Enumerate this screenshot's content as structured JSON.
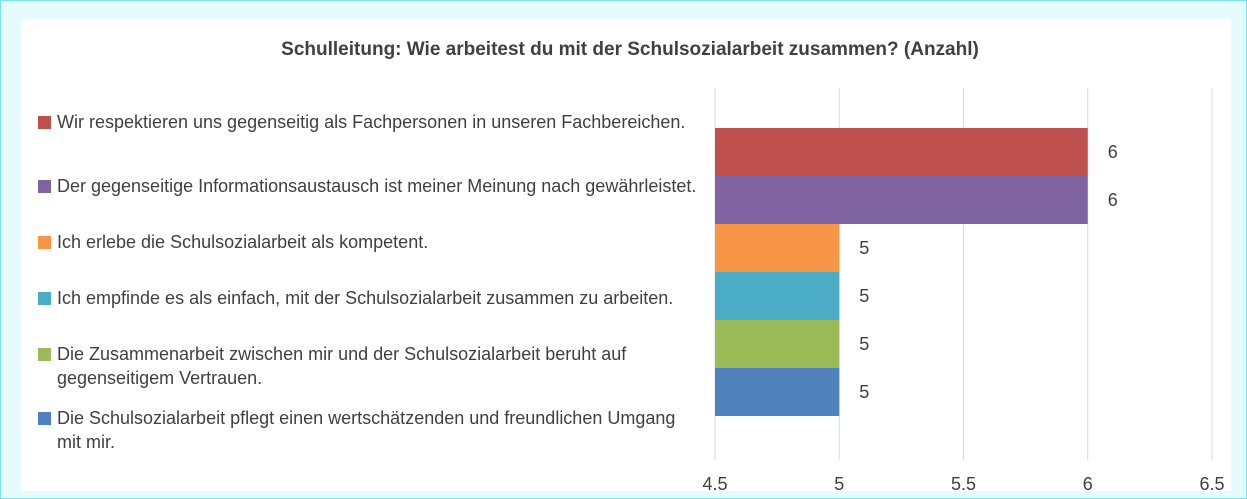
{
  "chart_data": {
    "type": "bar",
    "orientation": "horizontal",
    "title": "Schulleitung: Wie arbeitest du mit der Schulsozialarbeit zusammen? (Anzahl)",
    "categories": [
      null
    ],
    "series": [
      {
        "name": "Wir respektieren uns gegenseitig als Fachpersonen in unseren Fachbereichen.",
        "color": "#c0504d",
        "values": [
          6
        ]
      },
      {
        "name": "Der gegenseitige Informationsaustausch ist meiner Meinung nach gewährleistet.",
        "color": "#8064a2",
        "values": [
          6
        ]
      },
      {
        "name": "Ich erlebe die Schulsozialarbeit als kompetent.",
        "color": "#f79646",
        "values": [
          5
        ]
      },
      {
        "name": "Ich empfinde es als einfach, mit der Schulsozialarbeit zusammen zu arbeiten.",
        "color": "#4bacc6",
        "values": [
          5
        ]
      },
      {
        "name": "Die Zusammenarbeit zwischen mir und der Schulsozialarbeit beruht auf gegenseitigem Vertrauen.",
        "color": "#9bbb59",
        "values": [
          5
        ]
      },
      {
        "name": "Die Schulsozialarbeit pflegt einen wertschätzenden und freundlichen Umgang mit mir.",
        "color": "#4f81bd",
        "values": [
          5
        ]
      }
    ],
    "xlim": [
      4.5,
      6.5
    ],
    "xticks": [
      4.5,
      5,
      5.5,
      6,
      6.5
    ],
    "grid": true,
    "legend": "left",
    "data_labels": true
  }
}
